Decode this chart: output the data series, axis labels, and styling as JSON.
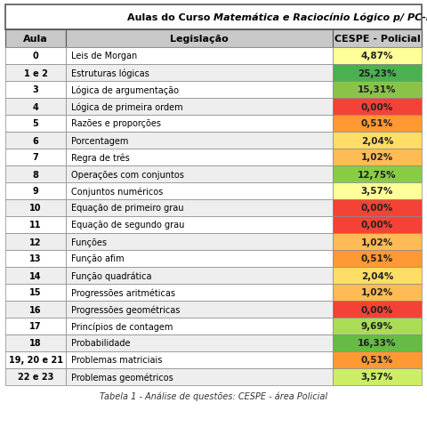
{
  "title_normal": "Aulas do Curso ",
  "title_italic": "Matemática e Raciocínio Lógico p/ PC-DF (Escrivão)",
  "col_headers": [
    "Aula",
    "Legislação",
    "CESPE - Policial"
  ],
  "rows": [
    [
      "0",
      "Leis de Morgan",
      "4,87%",
      "#FFFF99"
    ],
    [
      "1 e 2",
      "Estruturas lógicas",
      "25,23%",
      "#4CAF50"
    ],
    [
      "3",
      "Lógica de argumentação",
      "15,31%",
      "#8BC34A"
    ],
    [
      "4",
      "Lógica de primeira ordem",
      "0,00%",
      "#F44336"
    ],
    [
      "5",
      "Razões e proporções",
      "0,51%",
      "#FF9933"
    ],
    [
      "6",
      "Porcentagem",
      "2,04%",
      "#FFDD66"
    ],
    [
      "7",
      "Regra de três",
      "1,02%",
      "#FFBB55"
    ],
    [
      "8",
      "Operações com conjuntos",
      "12,75%",
      "#88CC44"
    ],
    [
      "9",
      "Conjuntos numéricos",
      "3,57%",
      "#FFFF99"
    ],
    [
      "10",
      "Equação de primeiro grau",
      "0,00%",
      "#F44336"
    ],
    [
      "11",
      "Equação de segundo grau",
      "0,00%",
      "#F44336"
    ],
    [
      "12",
      "Funções",
      "1,02%",
      "#FFBB55"
    ],
    [
      "13",
      "Função afim",
      "0,51%",
      "#FF9933"
    ],
    [
      "14",
      "Função quadrática",
      "2,04%",
      "#FFDD66"
    ],
    [
      "15",
      "Progressões aritméticas",
      "1,02%",
      "#FFBB55"
    ],
    [
      "16",
      "Progressões geométricas",
      "0,00%",
      "#F44336"
    ],
    [
      "17",
      "Princípios de contagem",
      "9,69%",
      "#AADD55"
    ],
    [
      "18",
      "Probabilidade",
      "16,33%",
      "#66BB44"
    ],
    [
      "19, 20 e 21",
      "Problemas matriciais",
      "0,51%",
      "#FF9933"
    ],
    [
      "22 e 23",
      "Problemas geométricos",
      "3,57%",
      "#CCEE66"
    ]
  ],
  "footer": "Tabela 1 - Análise de questões: CESPE - área Policial",
  "col_header_bg": "#C8C8C8",
  "border_color": "#888888",
  "title_bg": "#FFFFFF"
}
